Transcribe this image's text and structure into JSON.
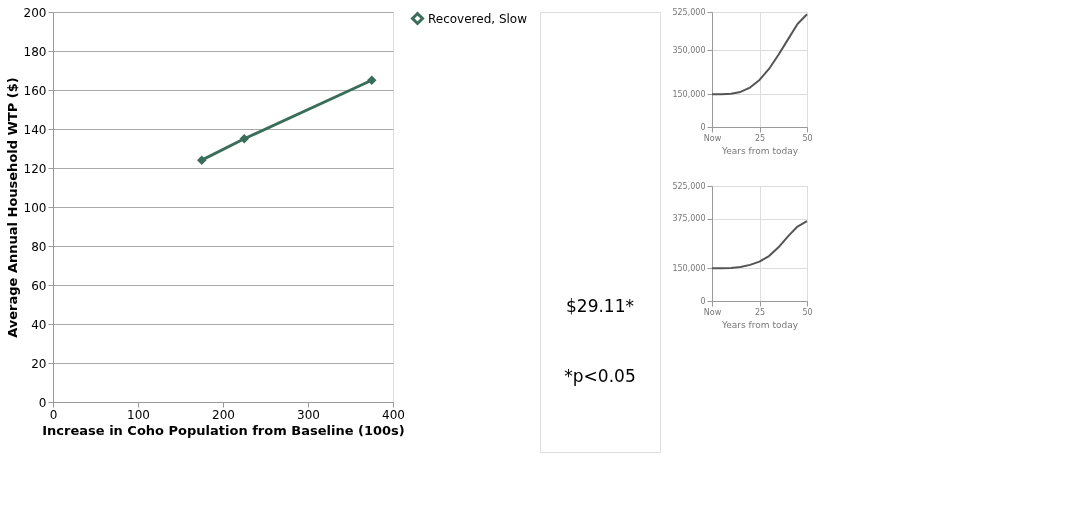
{
  "chart_data": [
    {
      "type": "line",
      "xlabel": "Increase in Coho Population from Baseline (100s)",
      "ylabel": "Average Annual Household WTP ($)",
      "x": [
        175,
        225,
        375
      ],
      "series": [
        {
          "name": "Recovered, Slow",
          "color": "#3b6e5a",
          "values": [
            124,
            135,
            165
          ]
        }
      ],
      "xlim": [
        0,
        400
      ],
      "xticks": [
        0,
        100,
        200,
        300,
        400
      ],
      "ylim": [
        0,
        200
      ],
      "yticks": [
        0,
        20,
        40,
        60,
        80,
        100,
        120,
        140,
        160,
        180,
        200
      ],
      "grid": "y",
      "legend": "right",
      "marker": "diamond",
      "line_style": "solid",
      "annotations": [
        "$29.11*",
        "*p<0.05"
      ]
    },
    {
      "type": "line",
      "xlabel": "Years from today",
      "x": [
        0,
        5,
        10,
        15,
        20,
        25,
        30,
        35,
        40,
        45,
        50
      ],
      "series": [
        {
          "color": "#555555",
          "values": [
            150000,
            150000,
            152000,
            160000,
            180000,
            215000,
            265000,
            330000,
            400000,
            470000,
            515000
          ]
        }
      ],
      "xlim": [
        0,
        50
      ],
      "xticks": [
        {
          "value": 0,
          "label": "Now"
        },
        25,
        50
      ],
      "ylim": [
        0,
        525000
      ],
      "yticks": [
        0,
        {
          "value": 150000,
          "label": "150,000"
        },
        {
          "value": 350000,
          "label": "350,000"
        },
        {
          "value": 525000,
          "label": "525,000"
        }
      ],
      "grid": true,
      "marker": "none",
      "line_style": "solid"
    },
    {
      "type": "line",
      "xlabel": "Years from today",
      "x": [
        0,
        5,
        10,
        15,
        20,
        25,
        30,
        35,
        40,
        45,
        50
      ],
      "series": [
        {
          "color": "#555555",
          "values": [
            150000,
            150000,
            151000,
            155000,
            165000,
            180000,
            205000,
            245000,
            295000,
            340000,
            365000
          ]
        }
      ],
      "xlim": [
        0,
        50
      ],
      "xticks": [
        {
          "value": 0,
          "label": "Now"
        },
        25,
        50
      ],
      "ylim": [
        0,
        525000
      ],
      "yticks": [
        0,
        {
          "value": 150000,
          "label": "150,000"
        },
        {
          "value": 375000,
          "label": "375,000"
        },
        {
          "value": 525000,
          "label": "525,000"
        }
      ],
      "grid": true,
      "marker": "none",
      "line_style": "solid"
    }
  ]
}
